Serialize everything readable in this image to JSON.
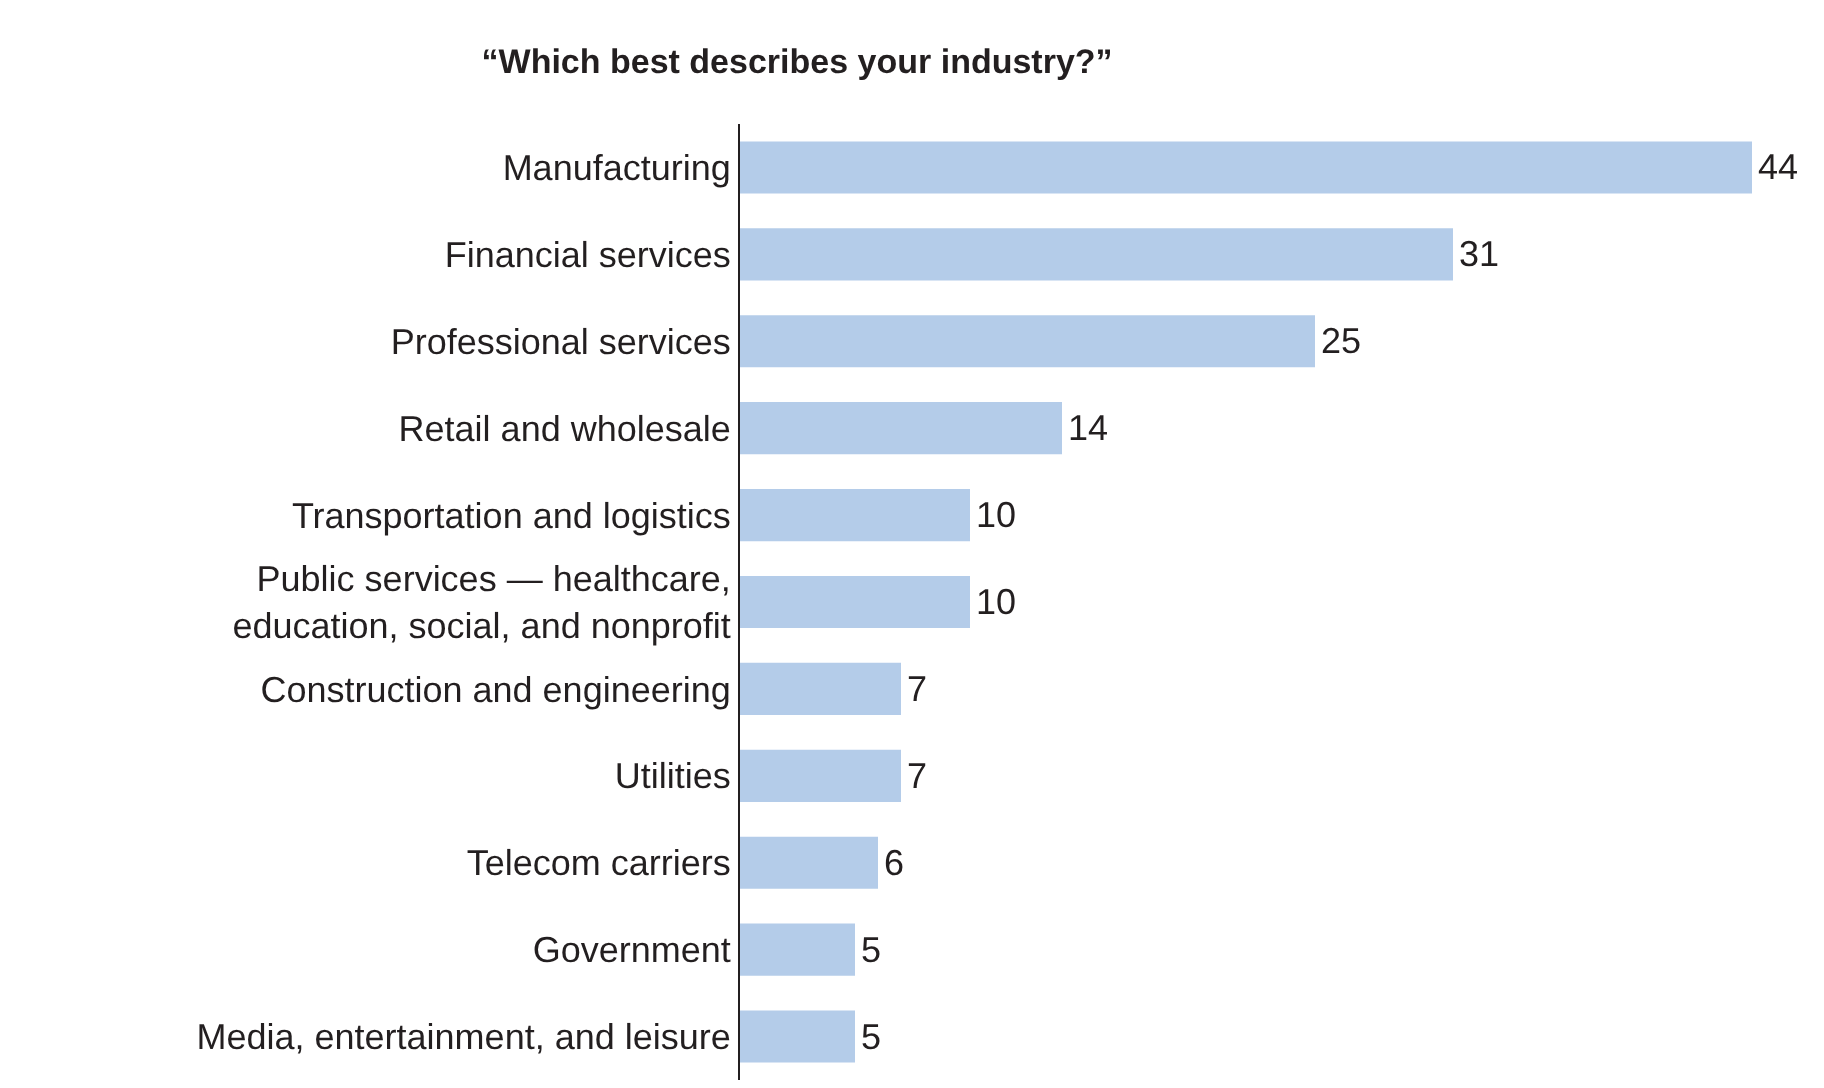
{
  "chart_data": {
    "type": "bar",
    "orientation": "horizontal",
    "title": "“Which best describes your industry?”",
    "categories": [
      "Manufacturing",
      "Financial services",
      "Professional services",
      "Retail and wholesale",
      "Transportation and logistics",
      "Public services — healthcare,\neducation, social, and nonprofit",
      "Construction and engineering",
      "Utilities",
      "Telecom carriers",
      "Government",
      "Media, entertainment, and leisure"
    ],
    "values": [
      44,
      31,
      25,
      14,
      10,
      10,
      7,
      7,
      6,
      5,
      5
    ],
    "color": "#b4cce9",
    "data_labels": true
  }
}
